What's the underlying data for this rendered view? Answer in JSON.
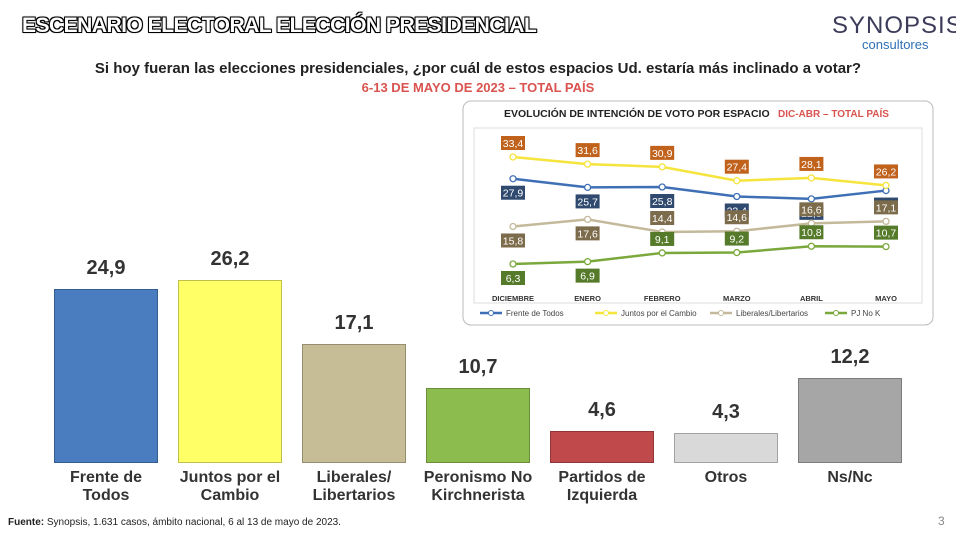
{
  "header": {
    "title": "ESCENARIO ELECTORAL ELECCIÓN PRESIDENCIAL",
    "logo": "SYNOPSIS",
    "logo_sub": "consultores"
  },
  "footer": {
    "label": "Fuente:",
    "text": " Synopsis, 1.631 casos, ámbito nacional, 6 al 13 de mayo de 2023."
  },
  "page_number": "3",
  "chart_data": [
    {
      "type": "bar",
      "title": "Si hoy fueran las elecciones presidenciales, ¿por cuál de estos espacios Ud. estaría más inclinado a votar?",
      "subtitle": "6-13 DE MAYO DE 2023 – TOTAL PAÍS",
      "categories": [
        "Frente de\nTodos",
        "Juntos por el\nCambio",
        "Liberales/\nLibertarios",
        "Peronismo No\nKirchnerista",
        "Partidos de\nIzquierda",
        "Otros",
        "Ns/Nc"
      ],
      "values": [
        24.9,
        26.2,
        17.1,
        10.7,
        4.6,
        4.3,
        12.2
      ],
      "value_labels": [
        "24,9",
        "26,2",
        "17,1",
        "10,7",
        "4,6",
        "4,3",
        "12,2"
      ],
      "colors": [
        "#4a7cc0",
        "#ffff66",
        "#c6bd96",
        "#8cbc4e",
        "#c0494c",
        "#d9d9d9",
        "#a6a6a6"
      ]
    },
    {
      "type": "line",
      "title": "EVOLUCIÓN DE INTENCIÓN DE VOTO POR ESPACIO",
      "subtitle": "DIC-ABR – TOTAL PAÍS",
      "categories": [
        "DICIEMBRE",
        "ENERO",
        "FEBRERO",
        "MARZO",
        "ABRIL",
        "MAYO"
      ],
      "series": [
        {
          "name": "Frente de Todos",
          "color": "#3f70b5",
          "label_color": "#2f4a6e",
          "values": [
            27.9,
            25.7,
            25.8,
            23.4,
            22.8,
            24.9
          ],
          "value_labels": [
            "27,9",
            "25,7",
            "25,8",
            "23,4",
            "22,8",
            "24,9"
          ]
        },
        {
          "name": "Juntos por el Cambio",
          "color": "#f5e43c",
          "label_color": "#c0621c",
          "values": [
            33.4,
            31.6,
            30.9,
            27.4,
            28.1,
            26.2
          ],
          "value_labels": [
            "33,4",
            "31,6",
            "30,9",
            "27,4",
            "28,1",
            "26,2"
          ]
        },
        {
          "name": "Liberales/Libertarios",
          "color": "#c4b99a",
          "label_color": "#7d6c4b",
          "values": [
            15.8,
            17.6,
            14.4,
            14.6,
            16.6,
            17.1
          ],
          "value_labels": [
            "15,8",
            "17,6",
            "14,4",
            "14,6",
            "16,6",
            "17,1"
          ]
        },
        {
          "name": "PJ No K",
          "color": "#7aa83c",
          "label_color": "#557a2a",
          "values": [
            6.3,
            6.9,
            9.1,
            9.2,
            10.8,
            10.7
          ],
          "value_labels": [
            "6,3",
            "6,9",
            "9,1",
            "9,2",
            "10,8",
            "10,7"
          ]
        }
      ]
    }
  ]
}
